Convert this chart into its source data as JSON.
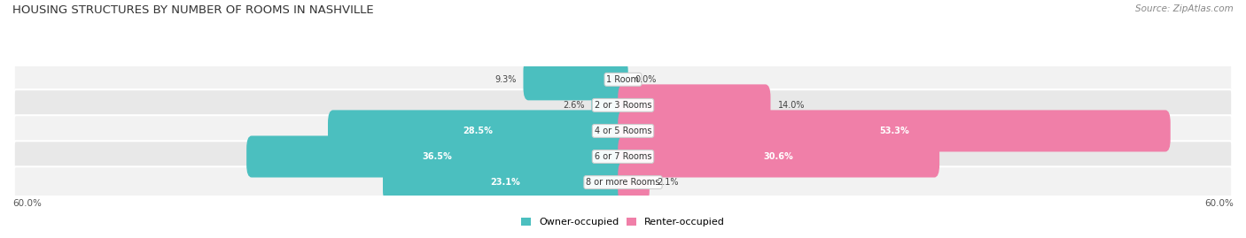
{
  "title": "HOUSING STRUCTURES BY NUMBER OF ROOMS IN NASHVILLE",
  "source": "Source: ZipAtlas.com",
  "categories": [
    "1 Room",
    "2 or 3 Rooms",
    "4 or 5 Rooms",
    "6 or 7 Rooms",
    "8 or more Rooms"
  ],
  "owner_values": [
    9.3,
    2.6,
    28.5,
    36.5,
    23.1
  ],
  "renter_values": [
    0.0,
    14.0,
    53.3,
    30.6,
    2.1
  ],
  "owner_color": "#4BBFBF",
  "renter_color": "#F07FA8",
  "row_bg_colors": [
    "#F2F2F2",
    "#E8E8E8",
    "#F2F2F2",
    "#E8E8E8",
    "#F2F2F2"
  ],
  "max_val": 60.0,
  "figsize": [
    14.06,
    2.69
  ],
  "dpi": 100
}
